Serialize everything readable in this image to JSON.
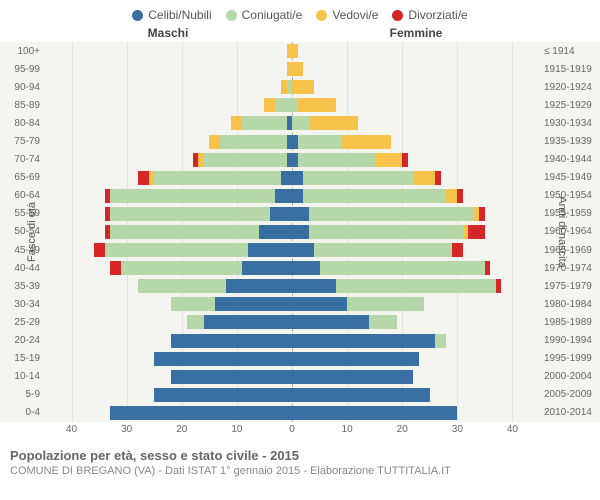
{
  "type": "population-pyramid",
  "legend": [
    {
      "label": "Celibi/Nubili",
      "color": "#3a6fa3"
    },
    {
      "label": "Coniugati/e",
      "color": "#b6d7a8"
    },
    {
      "label": "Vedovi/e",
      "color": "#f6c24a"
    },
    {
      "label": "Divorziati/e",
      "color": "#d62728"
    }
  ],
  "header_male": "Maschi",
  "header_female": "Femmine",
  "ylabel_left": "Fasce di età",
  "ylabel_right": "Anni di nascita",
  "x_ticks": [
    40,
    30,
    20,
    10,
    0,
    10,
    20,
    30,
    40
  ],
  "x_max": 45,
  "footer_title": "Popolazione per età, sesso e stato civile - 2015",
  "footer_sub": "COMUNE DI BREGANO (VA) - Dati ISTAT 1° gennaio 2015 - Elaborazione TUTTITALIA.IT",
  "background": "#f7f7f5",
  "plot_bg": "#f4f4f0",
  "grid_color": "#e4e4de",
  "label_fontsize": 10,
  "rows": [
    {
      "age": "100+",
      "birth": "≤ 1914",
      "m": {
        "cel": 0,
        "con": 0,
        "ved": 1,
        "div": 0
      },
      "f": {
        "cel": 0,
        "con": 0,
        "ved": 1,
        "div": 0
      }
    },
    {
      "age": "95-99",
      "birth": "1915-1919",
      "m": {
        "cel": 0,
        "con": 0,
        "ved": 1,
        "div": 0
      },
      "f": {
        "cel": 0,
        "con": 0,
        "ved": 2,
        "div": 0
      }
    },
    {
      "age": "90-94",
      "birth": "1920-1924",
      "m": {
        "cel": 0,
        "con": 1,
        "ved": 1,
        "div": 0
      },
      "f": {
        "cel": 0,
        "con": 0,
        "ved": 4,
        "div": 0
      }
    },
    {
      "age": "85-89",
      "birth": "1925-1929",
      "m": {
        "cel": 0,
        "con": 3,
        "ved": 2,
        "div": 0
      },
      "f": {
        "cel": 0,
        "con": 1,
        "ved": 7,
        "div": 0
      }
    },
    {
      "age": "80-84",
      "birth": "1930-1934",
      "m": {
        "cel": 1,
        "con": 8,
        "ved": 2,
        "div": 0
      },
      "f": {
        "cel": 0,
        "con": 3,
        "ved": 9,
        "div": 0
      }
    },
    {
      "age": "75-79",
      "birth": "1935-1939",
      "m": {
        "cel": 1,
        "con": 12,
        "ved": 2,
        "div": 0
      },
      "f": {
        "cel": 1,
        "con": 8,
        "ved": 9,
        "div": 0
      }
    },
    {
      "age": "70-74",
      "birth": "1940-1944",
      "m": {
        "cel": 1,
        "con": 15,
        "ved": 1,
        "div": 1
      },
      "f": {
        "cel": 1,
        "con": 14,
        "ved": 5,
        "div": 1
      }
    },
    {
      "age": "65-69",
      "birth": "1945-1949",
      "m": {
        "cel": 2,
        "con": 23,
        "ved": 1,
        "div": 2
      },
      "f": {
        "cel": 2,
        "con": 20,
        "ved": 4,
        "div": 1
      }
    },
    {
      "age": "60-64",
      "birth": "1950-1954",
      "m": {
        "cel": 3,
        "con": 30,
        "ved": 0,
        "div": 1
      },
      "f": {
        "cel": 2,
        "con": 26,
        "ved": 2,
        "div": 1
      }
    },
    {
      "age": "55-59",
      "birth": "1955-1959",
      "m": {
        "cel": 4,
        "con": 29,
        "ved": 0,
        "div": 1
      },
      "f": {
        "cel": 3,
        "con": 30,
        "ved": 1,
        "div": 1
      }
    },
    {
      "age": "50-54",
      "birth": "1960-1964",
      "m": {
        "cel": 6,
        "con": 27,
        "ved": 0,
        "div": 1
      },
      "f": {
        "cel": 3,
        "con": 28,
        "ved": 1,
        "div": 3
      }
    },
    {
      "age": "45-49",
      "birth": "1965-1969",
      "m": {
        "cel": 8,
        "con": 26,
        "ved": 0,
        "div": 2
      },
      "f": {
        "cel": 4,
        "con": 25,
        "ved": 0,
        "div": 2
      }
    },
    {
      "age": "40-44",
      "birth": "1970-1974",
      "m": {
        "cel": 9,
        "con": 22,
        "ved": 0,
        "div": 2
      },
      "f": {
        "cel": 5,
        "con": 30,
        "ved": 0,
        "div": 1
      }
    },
    {
      "age": "35-39",
      "birth": "1975-1979",
      "m": {
        "cel": 12,
        "con": 16,
        "ved": 0,
        "div": 0
      },
      "f": {
        "cel": 8,
        "con": 29,
        "ved": 0,
        "div": 1
      }
    },
    {
      "age": "30-34",
      "birth": "1980-1984",
      "m": {
        "cel": 14,
        "con": 8,
        "ved": 0,
        "div": 0
      },
      "f": {
        "cel": 10,
        "con": 14,
        "ved": 0,
        "div": 0
      }
    },
    {
      "age": "25-29",
      "birth": "1985-1989",
      "m": {
        "cel": 16,
        "con": 3,
        "ved": 0,
        "div": 0
      },
      "f": {
        "cel": 14,
        "con": 5,
        "ved": 0,
        "div": 0
      }
    },
    {
      "age": "20-24",
      "birth": "1990-1994",
      "m": {
        "cel": 22,
        "con": 0,
        "ved": 0,
        "div": 0
      },
      "f": {
        "cel": 26,
        "con": 2,
        "ved": 0,
        "div": 0
      }
    },
    {
      "age": "15-19",
      "birth": "1995-1999",
      "m": {
        "cel": 25,
        "con": 0,
        "ved": 0,
        "div": 0
      },
      "f": {
        "cel": 23,
        "con": 0,
        "ved": 0,
        "div": 0
      }
    },
    {
      "age": "10-14",
      "birth": "2000-2004",
      "m": {
        "cel": 22,
        "con": 0,
        "ved": 0,
        "div": 0
      },
      "f": {
        "cel": 22,
        "con": 0,
        "ved": 0,
        "div": 0
      }
    },
    {
      "age": "5-9",
      "birth": "2005-2009",
      "m": {
        "cel": 25,
        "con": 0,
        "ved": 0,
        "div": 0
      },
      "f": {
        "cel": 25,
        "con": 0,
        "ved": 0,
        "div": 0
      }
    },
    {
      "age": "0-4",
      "birth": "2010-2014",
      "m": {
        "cel": 33,
        "con": 0,
        "ved": 0,
        "div": 0
      },
      "f": {
        "cel": 30,
        "con": 0,
        "ved": 0,
        "div": 0
      }
    }
  ]
}
